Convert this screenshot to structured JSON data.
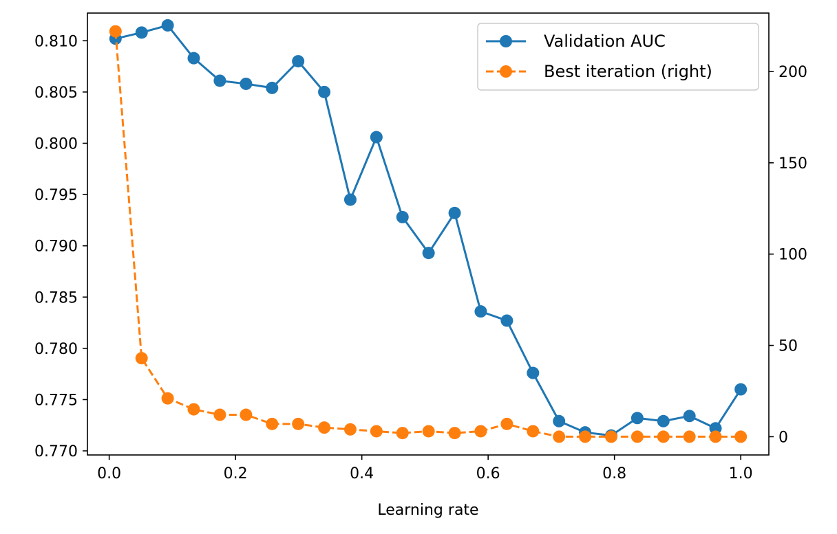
{
  "chart_data": {
    "type": "line",
    "xlabel": "Learning rate",
    "ylabel": "",
    "y2label": "",
    "xlim": [
      -0.0345,
      1.0445
    ],
    "ylim": [
      0.7696,
      0.8127
    ],
    "y2lim": [
      -10,
      232
    ],
    "xticks": [
      0.0,
      0.2,
      0.4,
      0.6,
      0.8,
      1.0
    ],
    "xtick_labels": [
      "0.0",
      "0.2",
      "0.4",
      "0.6",
      "0.8",
      "1.0"
    ],
    "yticks": [
      0.77,
      0.775,
      0.78,
      0.785,
      0.79,
      0.795,
      0.8,
      0.805,
      0.81
    ],
    "ytick_labels": [
      "0.770",
      "0.775",
      "0.780",
      "0.785",
      "0.790",
      "0.795",
      "0.800",
      "0.805",
      "0.810"
    ],
    "y2ticks": [
      0,
      50,
      100,
      150,
      200
    ],
    "y2tick_labels": [
      "0",
      "50",
      "100",
      "150",
      "200"
    ],
    "grid": false,
    "legend_position": "top-right",
    "x": [
      0.01,
      0.0513,
      0.0926,
      0.1339,
      0.1752,
      0.2166,
      0.2579,
      0.2992,
      0.3405,
      0.3818,
      0.4231,
      0.4644,
      0.5057,
      0.547,
      0.5883,
      0.6297,
      0.671,
      0.7123,
      0.7536,
      0.7949,
      0.8362,
      0.8775,
      0.9188,
      0.9601,
      1.0
    ],
    "series": [
      {
        "name": "Validation AUC",
        "axis": "left",
        "color": "#1f77b4",
        "line_style": "solid",
        "marker": "circle",
        "values": [
          0.8102,
          0.8108,
          0.8115,
          0.8083,
          0.8061,
          0.8058,
          0.8054,
          0.808,
          0.805,
          0.7945,
          0.8006,
          0.7928,
          0.7893,
          0.7932,
          0.7836,
          0.7827,
          0.7776,
          0.7729,
          0.7718,
          0.7715,
          0.7732,
          0.7729,
          0.7734,
          0.7722,
          0.776
        ]
      },
      {
        "name": "Best iteration (right)",
        "axis": "right",
        "color": "#ff7f0e",
        "line_style": "dashed",
        "marker": "circle",
        "values": [
          222,
          43,
          21,
          15,
          12,
          12,
          7,
          7,
          5,
          4,
          3,
          2,
          3,
          2,
          3,
          7,
          3,
          0,
          0,
          0,
          0,
          0,
          0,
          0,
          0
        ]
      }
    ]
  }
}
